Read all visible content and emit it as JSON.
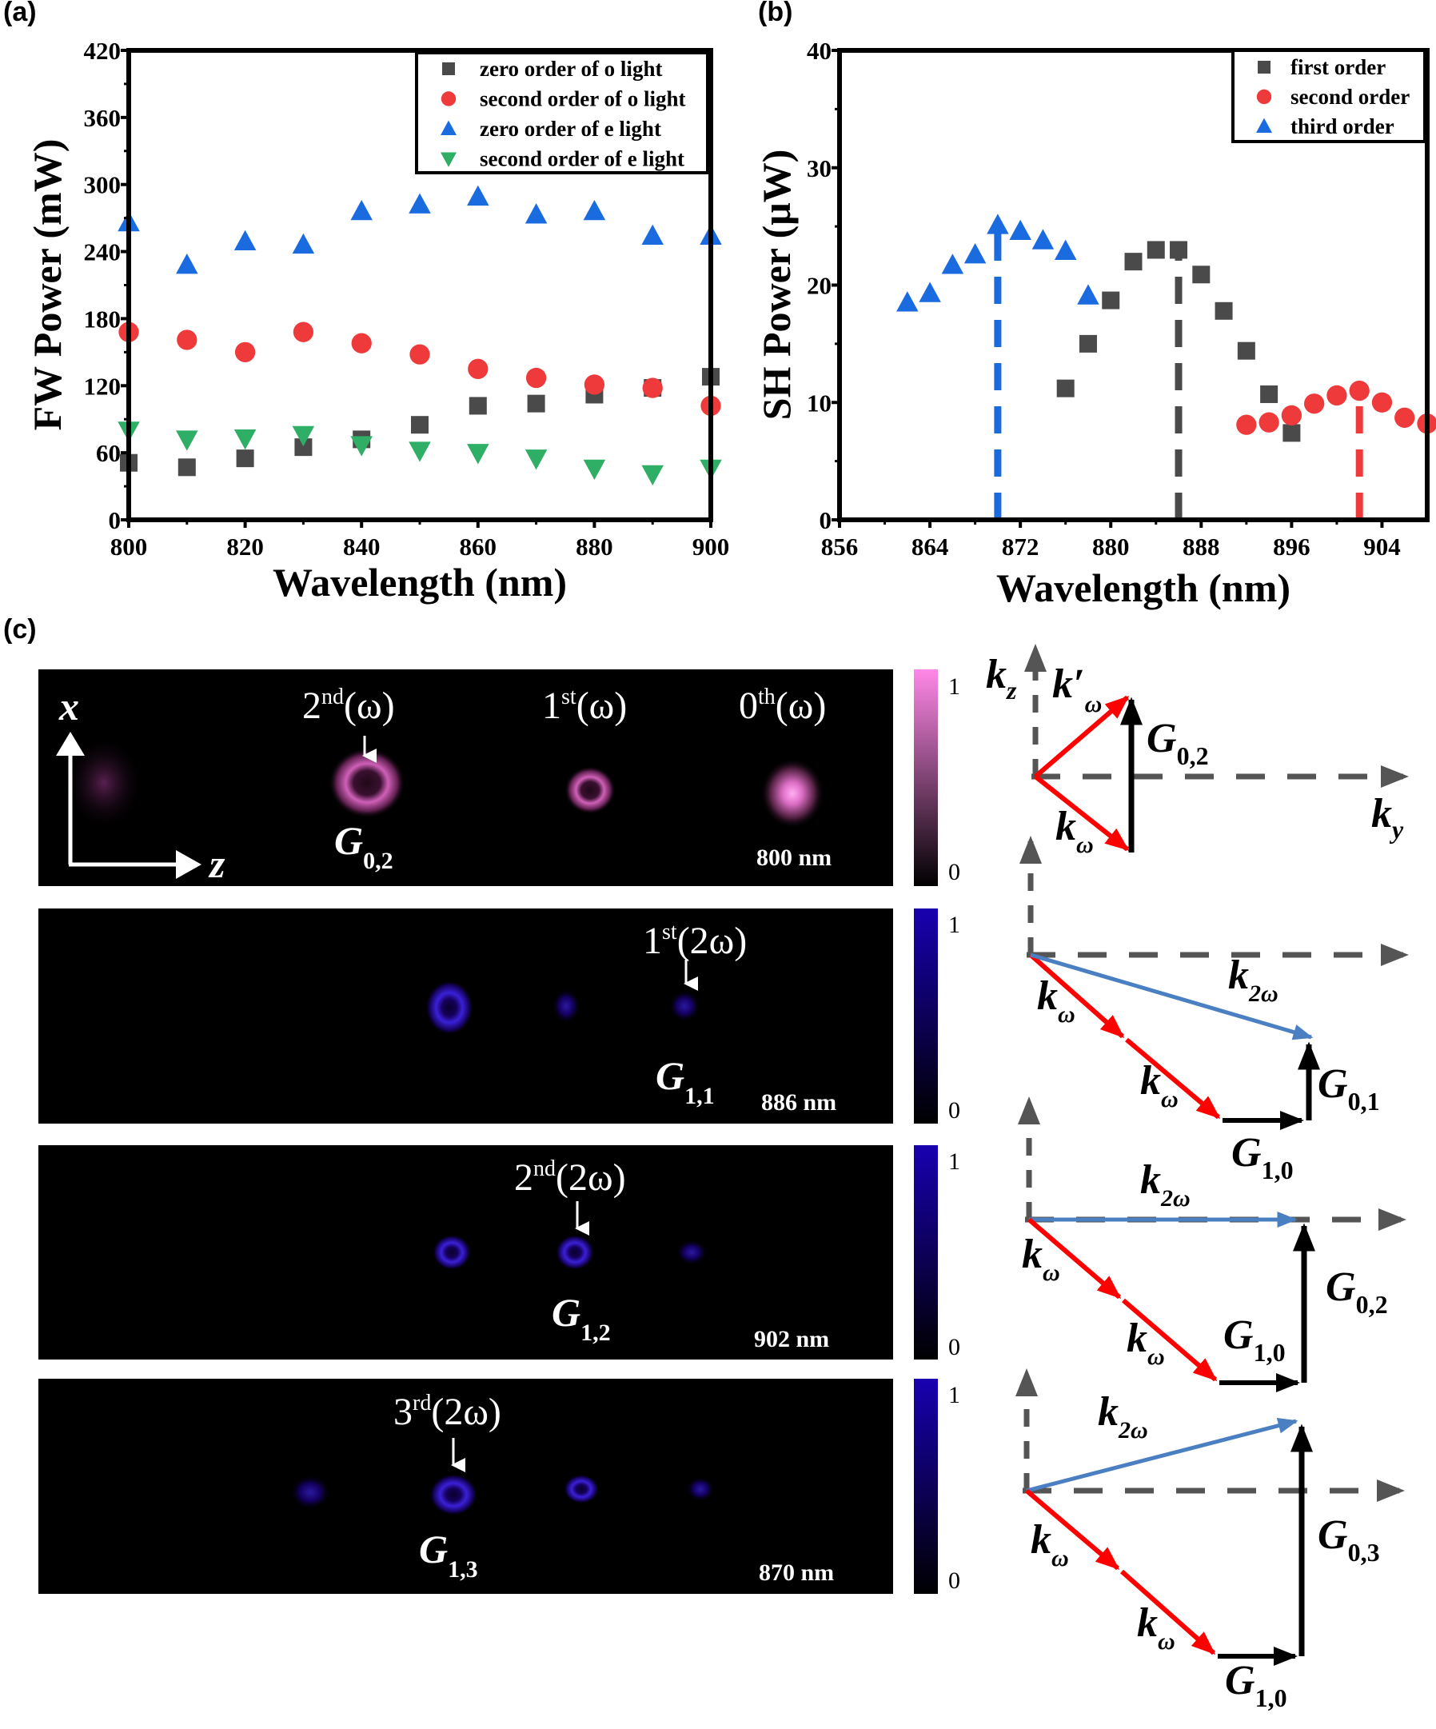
{
  "panel_labels": {
    "a": "(a)",
    "b": "(b)",
    "c": "(c)"
  },
  "colors": {
    "gray": "#4a4a4a",
    "red": "#ee3a3a",
    "blue": "#1a6be0",
    "green": "#2fae66",
    "arrow_red": "#ff0000",
    "arrow_blue": "#4a7fc1",
    "axis_gray": "#555555"
  },
  "chart_data": [
    {
      "type": "scatter",
      "xlabel": "Wavelength (nm)",
      "ylabel": "FW Power (mW)",
      "xlim": [
        800,
        900
      ],
      "ylim": [
        0,
        420
      ],
      "xticks": [
        800,
        820,
        840,
        860,
        880,
        900
      ],
      "yticks": [
        0,
        60,
        120,
        180,
        240,
        300,
        360,
        420
      ],
      "legend": "top-right",
      "x": [
        800,
        810,
        820,
        830,
        840,
        850,
        860,
        870,
        880,
        890,
        900
      ],
      "series": [
        {
          "name": "zero order of o light",
          "marker": "square",
          "color": "#4a4a4a",
          "values": [
            51,
            47,
            55,
            65,
            72,
            85,
            102,
            104,
            112,
            118,
            128
          ]
        },
        {
          "name": "second order of o light",
          "marker": "circle",
          "color": "#ee3a3a",
          "values": [
            168,
            161,
            150,
            168,
            158,
            148,
            135,
            127,
            121,
            118,
            102
          ]
        },
        {
          "name": "zero order of e light",
          "marker": "triangle-up",
          "color": "#1a6be0",
          "values": [
            266,
            228,
            249,
            246,
            276,
            282,
            289,
            273,
            276,
            254,
            254
          ]
        },
        {
          "name": "second order of e light",
          "marker": "triangle-down",
          "color": "#2fae66",
          "values": [
            80,
            72,
            73,
            76,
            67,
            62,
            60,
            55,
            46,
            41,
            46
          ]
        }
      ]
    },
    {
      "type": "scatter",
      "xlabel": "Wavelength (nm)",
      "ylabel": "SH Power (μW)",
      "xlim": [
        856,
        908
      ],
      "ylim": [
        0,
        40
      ],
      "xticks": [
        856,
        864,
        872,
        880,
        888,
        896,
        904
      ],
      "yticks": [
        0,
        10,
        20,
        30,
        40
      ],
      "legend": "top-right",
      "series": [
        {
          "name": "first order",
          "marker": "square",
          "color": "#4a4a4a",
          "x": [
            876,
            878,
            880,
            882,
            884,
            886,
            888,
            890,
            892,
            894,
            896
          ],
          "values": [
            11.2,
            15.0,
            18.7,
            22.0,
            23.0,
            23.0,
            20.9,
            17.8,
            14.4,
            10.7,
            7.4
          ]
        },
        {
          "name": "second order",
          "marker": "circle",
          "color": "#ee3a3a",
          "x": [
            892,
            894,
            896,
            898,
            900,
            902,
            904,
            906,
            908
          ],
          "values": [
            8.1,
            8.3,
            8.9,
            9.9,
            10.6,
            11.0,
            10.0,
            8.7,
            8.2
          ]
        },
        {
          "name": "third order",
          "marker": "triangle-up",
          "color": "#1a6be0",
          "x": [
            862,
            864,
            866,
            868,
            870,
            872,
            874,
            876,
            878
          ],
          "values": [
            18.5,
            19.3,
            21.7,
            22.6,
            25.1,
            24.6,
            23.8,
            22.9,
            19.1
          ]
        }
      ],
      "dashed_markers": [
        {
          "x": 870,
          "y": 25.1,
          "color": "#1a6be0"
        },
        {
          "x": 886,
          "y": 23.0,
          "color": "#4a4a4a"
        },
        {
          "x": 902,
          "y": 11.0,
          "color": "#ee3a3a"
        }
      ]
    }
  ],
  "images": [
    {
      "orders": [
        {
          "n": "2",
          "sup": "nd",
          "f": "(ω)"
        },
        {
          "n": "1",
          "sup": "st",
          "f": "(ω)"
        },
        {
          "n": "0",
          "sup": "th",
          "f": "(ω)"
        }
      ],
      "G": "G",
      "G_sub": "0,2",
      "wavelength": "800 nm",
      "axis_x": "x",
      "axis_z": "z",
      "colorbar": {
        "max": "1",
        "min": "0",
        "color": "#ff88e8"
      }
    },
    {
      "orders": [
        {
          "n": "1",
          "sup": "st",
          "f": "(2ω)"
        }
      ],
      "G": "G",
      "G_sub": "1,1",
      "wavelength": "886 nm",
      "colorbar": {
        "max": "1",
        "min": "0",
        "color": "#1800b0"
      }
    },
    {
      "orders": [
        {
          "n": "2",
          "sup": "nd",
          "f": "(2ω)"
        }
      ],
      "G": "G",
      "G_sub": "1,2",
      "wavelength": "902 nm",
      "colorbar": {
        "max": "1",
        "min": "0",
        "color": "#1800b0"
      }
    },
    {
      "orders": [
        {
          "n": "3",
          "sup": "rd",
          "f": "(2ω)"
        }
      ],
      "G": "G",
      "G_sub": "1,3",
      "wavelength": "870 nm",
      "colorbar": {
        "max": "1",
        "min": "0",
        "color": "#1800b0"
      }
    }
  ],
  "diagrams": {
    "kz": "k",
    "kz_sub": "z",
    "ky": "k",
    "ky_sub": "y",
    "k": "k",
    "w_sub": "ω",
    "w2_sub": "2ω",
    "prime": "′",
    "G": "G",
    "G02": "0,2",
    "G01": "0,1",
    "G10": "1,0",
    "G03": "0,3"
  }
}
